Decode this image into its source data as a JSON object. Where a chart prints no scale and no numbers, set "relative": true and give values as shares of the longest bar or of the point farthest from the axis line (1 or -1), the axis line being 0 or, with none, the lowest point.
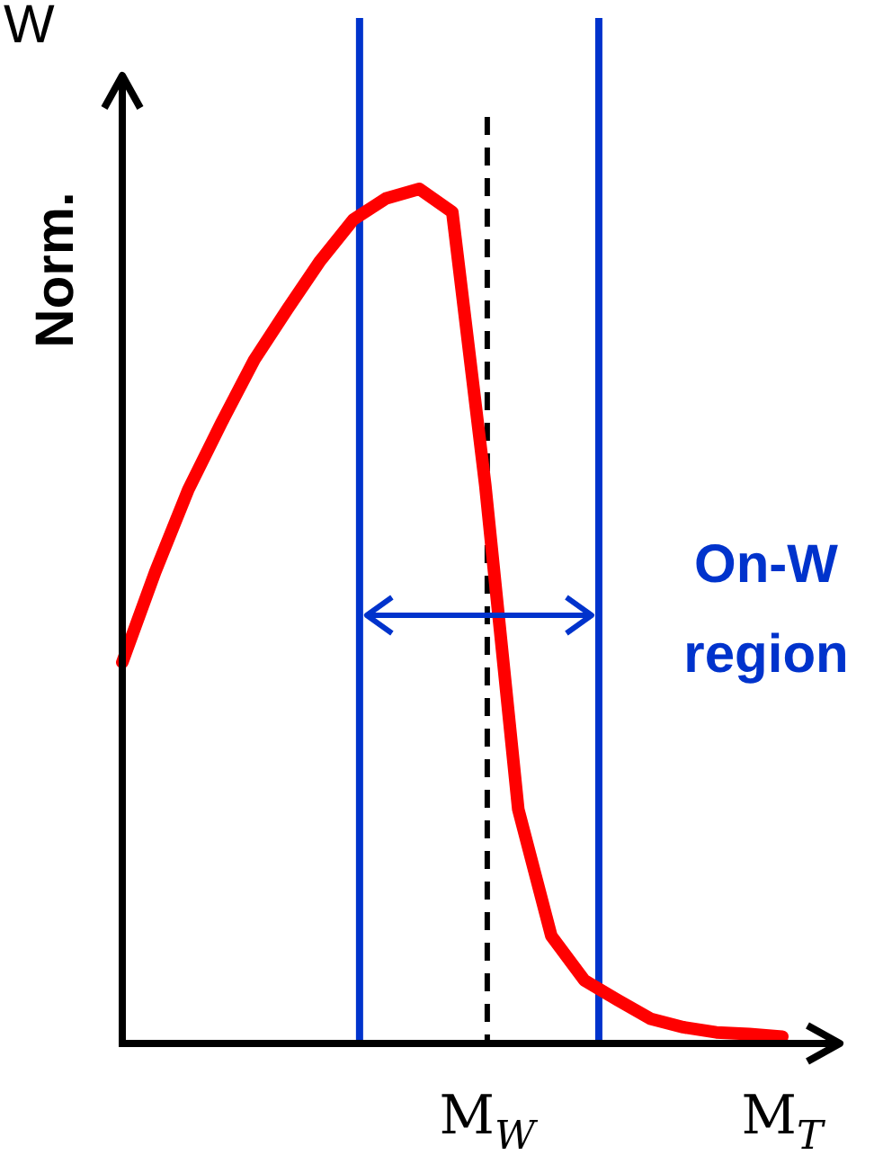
{
  "chart_data": {
    "type": "line",
    "title": "W",
    "ylabel": "Norm.",
    "xlabel": "M$_{T}$",
    "relative": true,
    "legend": false,
    "marker": "none",
    "line_style": "solid",
    "categories": [
      null,
      null,
      null,
      null,
      null,
      null,
      null,
      null,
      null,
      null,
      null,
      null,
      null,
      null,
      null,
      null,
      null,
      null,
      null,
      null,
      null
    ],
    "series": [
      {
        "color": "#ff0000",
        "values": [
          0.446,
          0.552,
          0.648,
          0.726,
          0.8,
          0.859,
          0.916,
          0.964,
          0.989,
          1,
          0.973,
          0.653,
          0.274,
          0.126,
          0.074,
          0.051,
          0.029,
          0.019,
          0.013,
          0.011,
          0.008
        ]
      }
    ],
    "annotations": [
      "On-W region",
      "M$_{W}$"
    ]
  }
}
